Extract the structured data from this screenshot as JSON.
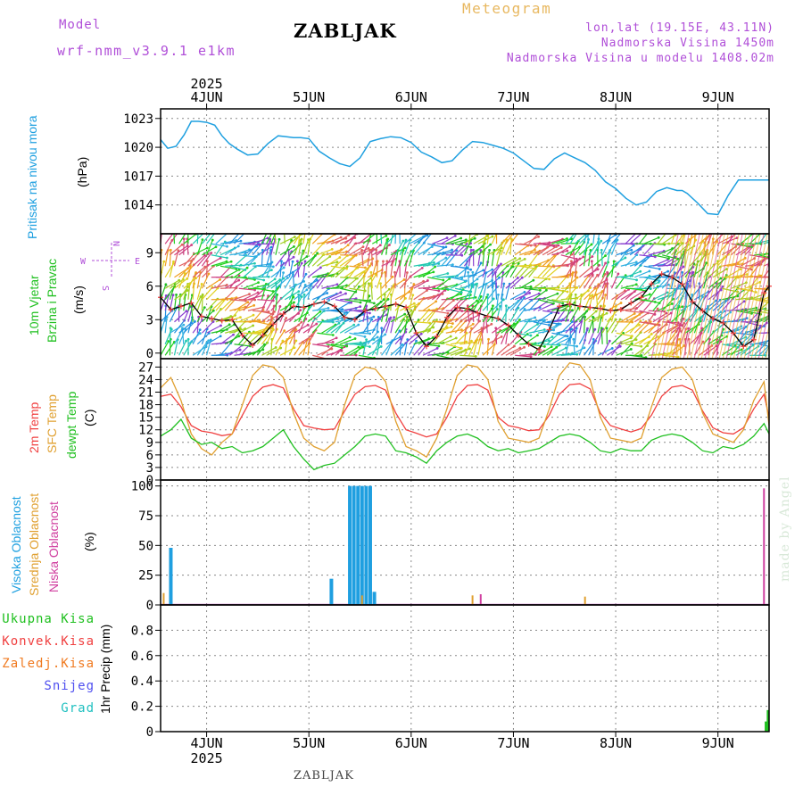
{
  "header": {
    "model_label": "Model",
    "model_name": "wrf-nmm_v3.9.1 e1km",
    "station": "ZABLJAK",
    "product": "Meteogram",
    "coords": "lon,lat (19.15E, 43.11N)",
    "elevation": "Nadmorska Visina 1450m",
    "model_elevation": "Nadmorska Visina u modelu 1408.02m",
    "footer_station": "ZABLJAK",
    "credit": "made by Angel"
  },
  "colors": {
    "pressure": "#1fa0e0",
    "temp2m": "#f04040",
    "sfc": "#e0a030",
    "dewpt": "#20c020",
    "high_cloud": "#1f9fe0",
    "mid_cloud": "#e0a030",
    "low_cloud": "#d040a0",
    "purple": "#b04fd8",
    "grid": "#888888"
  },
  "chart_data": [
    {
      "type": "line",
      "panel": "pressure",
      "ylabel_main": "Pritisak na nivou mora",
      "ylabel_unit": "(hPa)",
      "ylim": [
        1011,
        1024
      ],
      "yticks": [
        1014,
        1017,
        1020,
        1023
      ],
      "x_start": 3.55,
      "x_end": 9.5,
      "series": [
        {
          "x": [
            3.55,
            3.62,
            3.7,
            3.78,
            3.85,
            3.92,
            4.0,
            4.08,
            4.15,
            4.22,
            4.3,
            4.4,
            4.5,
            4.6,
            4.7,
            4.78,
            4.85,
            4.92,
            5.0,
            5.1,
            5.2,
            5.3,
            5.4,
            5.5,
            5.6,
            5.7,
            5.8,
            5.9,
            6.0,
            6.1,
            6.2,
            6.3,
            6.4,
            6.5,
            6.6,
            6.7,
            6.8,
            6.9,
            7.0,
            7.1,
            7.2,
            7.3,
            7.4,
            7.5,
            7.6,
            7.7,
            7.8,
            7.9,
            8.0,
            8.1,
            8.2,
            8.3,
            8.4,
            8.5,
            8.6,
            8.65,
            8.7,
            8.8,
            8.9,
            9.0,
            9.1,
            9.2,
            9.3,
            9.4,
            9.5
          ],
          "y": [
            1020.8,
            1019.9,
            1020.1,
            1021.3,
            1022.7,
            1022.7,
            1022.6,
            1022.3,
            1021.2,
            1020.4,
            1019.8,
            1019.2,
            1019.3,
            1020.4,
            1021.2,
            1021.1,
            1021.0,
            1021.0,
            1020.9,
            1019.6,
            1018.9,
            1018.3,
            1018.0,
            1018.9,
            1020.6,
            1020.9,
            1021.1,
            1021.0,
            1020.5,
            1019.5,
            1019.0,
            1018.4,
            1018.6,
            1019.7,
            1020.6,
            1020.5,
            1020.2,
            1019.9,
            1019.4,
            1018.6,
            1017.8,
            1017.7,
            1018.8,
            1019.4,
            1018.9,
            1018.4,
            1017.6,
            1016.4,
            1015.7,
            1014.7,
            1014.0,
            1014.3,
            1015.4,
            1015.8,
            1015.5,
            1015.5,
            1015.2,
            1014.2,
            1013.1,
            1013.0,
            1015.0,
            1016.6,
            1016.6,
            1016.6,
            1016.6
          ]
        }
      ]
    },
    {
      "type": "line",
      "panel": "wind",
      "ylabel_main": "10m Vjetar",
      "ylabel_sub": "Brzina i Pravac",
      "ylabel_unit": "(m/s)",
      "compass": [
        "N",
        "W",
        "E",
        "S"
      ],
      "ylim": [
        -0.5,
        10.7
      ],
      "yticks": [
        0,
        3,
        6,
        9
      ],
      "series": [
        {
          "name": "speed",
          "x": [
            3.55,
            3.65,
            3.75,
            3.85,
            3.95,
            4.05,
            4.15,
            4.25,
            4.35,
            4.45,
            4.55,
            4.65,
            4.75,
            4.85,
            4.95,
            5.05,
            5.15,
            5.25,
            5.35,
            5.45,
            5.55,
            5.65,
            5.75,
            5.85,
            5.95,
            6.05,
            6.15,
            6.25,
            6.35,
            6.45,
            6.55,
            6.65,
            6.75,
            6.85,
            6.95,
            7.05,
            7.15,
            7.25,
            7.35,
            7.45,
            7.55,
            7.65,
            7.75,
            7.85,
            7.95,
            8.05,
            8.15,
            8.25,
            8.35,
            8.45,
            8.55,
            8.65,
            8.75,
            8.85,
            8.95,
            9.05,
            9.15,
            9.25,
            9.35,
            9.45,
            9.5
          ],
          "y": [
            5.0,
            3.9,
            4.2,
            4.5,
            3.3,
            3.1,
            2.9,
            3.0,
            1.6,
            0.7,
            1.6,
            2.6,
            3.5,
            4.2,
            4.1,
            4.4,
            4.6,
            4.2,
            3.2,
            3.0,
            3.8,
            4.0,
            4.2,
            4.4,
            4.1,
            1.8,
            0.6,
            1.5,
            3.2,
            4.1,
            4.0,
            3.6,
            3.3,
            3.1,
            2.5,
            1.6,
            0.8,
            0.3,
            2.1,
            4.2,
            4.4,
            4.2,
            4.1,
            4.0,
            3.8,
            3.9,
            4.5,
            5.0,
            6.2,
            7.1,
            6.8,
            6.2,
            4.6,
            3.8,
            3.1,
            2.7,
            1.8,
            0.6,
            1.2,
            5.4,
            6.0
          ]
        }
      ]
    },
    {
      "type": "line",
      "panel": "temperature",
      "ylabel_main": "2m Temp",
      "ylabel_sfc": "SFC Temp",
      "ylabel_dew": "dewpt Temp",
      "ylabel_unit": "(C)",
      "ylim": [
        0,
        29
      ],
      "yticks": [
        0,
        3,
        6,
        9,
        12,
        15,
        18,
        21,
        24,
        27
      ],
      "series": [
        {
          "name": "2m Temp",
          "x": [
            3.55,
            3.65,
            3.75,
            3.85,
            3.95,
            4.05,
            4.15,
            4.25,
            4.35,
            4.45,
            4.55,
            4.65,
            4.75,
            4.85,
            4.95,
            5.05,
            5.15,
            5.25,
            5.35,
            5.45,
            5.55,
            5.65,
            5.75,
            5.85,
            5.95,
            6.05,
            6.15,
            6.25,
            6.35,
            6.45,
            6.55,
            6.65,
            6.75,
            6.85,
            6.95,
            7.05,
            7.15,
            7.25,
            7.35,
            7.45,
            7.55,
            7.65,
            7.75,
            7.85,
            7.95,
            8.05,
            8.15,
            8.25,
            8.35,
            8.45,
            8.55,
            8.65,
            8.75,
            8.85,
            8.95,
            9.05,
            9.15,
            9.25,
            9.35,
            9.45,
            9.5
          ],
          "y": [
            20.0,
            20.5,
            17.5,
            13.0,
            11.7,
            11.3,
            10.6,
            11.0,
            15.5,
            20.0,
            22.2,
            22.8,
            22.0,
            17.0,
            13.0,
            12.4,
            12.0,
            12.2,
            16.5,
            20.5,
            22.3,
            22.6,
            21.5,
            16.0,
            12.0,
            11.2,
            10.3,
            11.0,
            15.0,
            20.0,
            22.6,
            22.8,
            21.5,
            15.0,
            13.0,
            12.5,
            11.8,
            12.0,
            15.5,
            20.5,
            22.8,
            23.0,
            21.8,
            16.0,
            13.0,
            12.2,
            11.5,
            12.3,
            15.5,
            20.0,
            22.2,
            22.6,
            21.5,
            16.5,
            12.5,
            11.3,
            11.0,
            12.5,
            17.0,
            20.5,
            15.0
          ]
        },
        {
          "name": "SFC Temp",
          "x": [
            3.55,
            3.65,
            3.75,
            3.85,
            3.95,
            4.05,
            4.15,
            4.25,
            4.35,
            4.45,
            4.55,
            4.65,
            4.75,
            4.85,
            4.95,
            5.05,
            5.15,
            5.25,
            5.35,
            5.45,
            5.55,
            5.65,
            5.75,
            5.85,
            5.95,
            6.05,
            6.15,
            6.25,
            6.35,
            6.45,
            6.55,
            6.65,
            6.75,
            6.85,
            6.95,
            7.05,
            7.15,
            7.25,
            7.35,
            7.45,
            7.55,
            7.65,
            7.75,
            7.85,
            7.95,
            8.05,
            8.15,
            8.25,
            8.35,
            8.45,
            8.55,
            8.65,
            8.75,
            8.85,
            8.95,
            9.05,
            9.15,
            9.25,
            9.35,
            9.45,
            9.5
          ],
          "y": [
            22.0,
            24.5,
            19.0,
            11.0,
            7.5,
            6.0,
            9.0,
            11.0,
            18.0,
            25.0,
            27.5,
            27.0,
            24.5,
            16.0,
            10.0,
            8.0,
            7.0,
            9.0,
            18.0,
            25.0,
            27.0,
            26.5,
            23.5,
            14.0,
            8.0,
            7.0,
            5.5,
            10.0,
            17.0,
            25.0,
            27.5,
            27.0,
            24.0,
            14.0,
            10.0,
            9.5,
            9.0,
            10.0,
            17.0,
            25.0,
            28.0,
            27.5,
            24.0,
            15.0,
            10.0,
            9.5,
            9.0,
            10.0,
            17.5,
            24.5,
            26.5,
            27.0,
            24.0,
            16.0,
            11.0,
            10.0,
            9.0,
            12.0,
            19.0,
            23.5,
            13.0
          ]
        },
        {
          "name": "dewpt Temp",
          "x": [
            3.55,
            3.65,
            3.75,
            3.85,
            3.95,
            4.05,
            4.15,
            4.25,
            4.35,
            4.45,
            4.55,
            4.65,
            4.75,
            4.85,
            4.95,
            5.05,
            5.15,
            5.25,
            5.35,
            5.45,
            5.55,
            5.65,
            5.75,
            5.85,
            5.95,
            6.05,
            6.15,
            6.25,
            6.35,
            6.45,
            6.55,
            6.65,
            6.75,
            6.85,
            6.95,
            7.05,
            7.15,
            7.25,
            7.35,
            7.45,
            7.55,
            7.65,
            7.75,
            7.85,
            7.95,
            8.05,
            8.15,
            8.25,
            8.35,
            8.45,
            8.55,
            8.65,
            8.75,
            8.85,
            8.95,
            9.05,
            9.15,
            9.25,
            9.35,
            9.45,
            9.5
          ],
          "y": [
            10.5,
            12.0,
            14.5,
            10.0,
            8.5,
            9.0,
            7.5,
            8.0,
            6.5,
            7.0,
            8.0,
            10.0,
            12.0,
            8.0,
            5.0,
            2.5,
            3.5,
            4.0,
            6.0,
            8.0,
            10.5,
            11.0,
            10.5,
            7.0,
            6.5,
            5.5,
            4.0,
            7.0,
            9.0,
            10.5,
            11.0,
            10.0,
            8.0,
            7.0,
            7.5,
            6.5,
            7.0,
            7.5,
            9.0,
            10.5,
            11.0,
            10.5,
            9.0,
            7.0,
            6.5,
            7.5,
            7.0,
            7.0,
            9.5,
            10.5,
            11.0,
            10.5,
            9.0,
            7.0,
            6.5,
            8.0,
            7.5,
            8.5,
            10.5,
            13.5,
            11.0
          ]
        }
      ]
    },
    {
      "type": "bar",
      "panel": "cloud",
      "ylabel_high": "Visoka Oblacnost",
      "ylabel_mid": "Srednja Oblacnost",
      "ylabel_low": "Niska Oblacnost",
      "ylabel_unit": "(%)",
      "ylim": [
        0,
        105
      ],
      "yticks": [
        0,
        25,
        50,
        75,
        100
      ],
      "series": [
        {
          "name": "high",
          "x": [
            3.65,
            5.22,
            5.4,
            5.44,
            5.48,
            5.52,
            5.56,
            5.6,
            5.64
          ],
          "y": [
            48,
            22,
            100,
            100,
            100,
            100,
            100,
            100,
            11
          ]
        },
        {
          "name": "mid",
          "x": [
            3.58,
            5.52,
            6.6,
            7.7
          ],
          "y": [
            10,
            8,
            8,
            7
          ]
        },
        {
          "name": "low",
          "x": [
            6.68,
            9.45
          ],
          "y": [
            9,
            98
          ]
        }
      ]
    },
    {
      "type": "bar",
      "panel": "precipitation",
      "legend": [
        "Ukupna Kisa",
        "Konvek.Kisa",
        "Zaledj.Kisa",
        "Snijeg",
        "Grad"
      ],
      "ylabel_unit": "1hr Precip (mm)",
      "ylim": [
        0,
        1.0
      ],
      "yticks": [
        0,
        0.2,
        0.4,
        0.6,
        0.8
      ],
      "series": [
        {
          "name": "Ukupna Kisa",
          "x": [
            9.47,
            9.49
          ],
          "y": [
            0.08,
            0.17
          ]
        }
      ]
    }
  ],
  "xaxis": {
    "year": "2025",
    "days": [
      {
        "x": 4,
        "label": "4JUN"
      },
      {
        "x": 5,
        "label": "5JUN"
      },
      {
        "x": 6,
        "label": "6JUN"
      },
      {
        "x": 7,
        "label": "7JUN"
      },
      {
        "x": 8,
        "label": "8JUN"
      },
      {
        "x": 9,
        "label": "9JUN"
      }
    ]
  }
}
